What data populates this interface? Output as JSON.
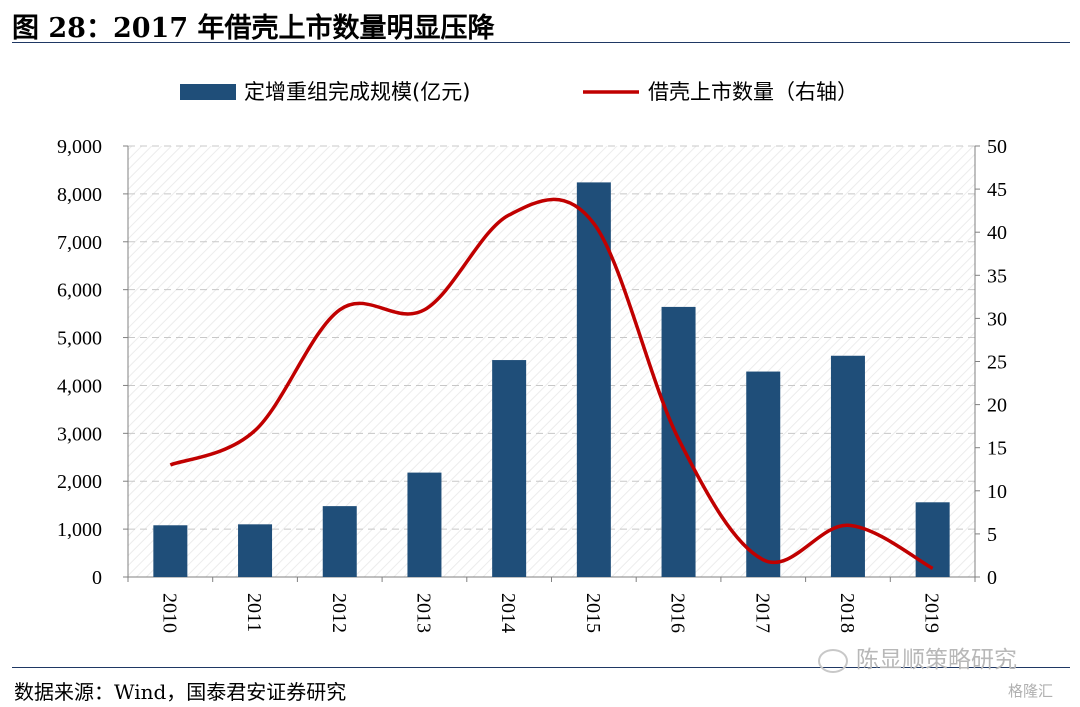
{
  "header": {
    "title": "图 28：2017 年借壳上市数量明显压降"
  },
  "footer": {
    "source": "数据来源：Wind，国泰君安证券研究",
    "watermark": "陈显顺策略研究",
    "watermark2": "格隆汇"
  },
  "colors": {
    "bar": "#1f4e79",
    "line": "#c00000",
    "rule": "#1f3864"
  },
  "chart_data": {
    "type": "bar",
    "categories": [
      "2010",
      "2011",
      "2012",
      "2013",
      "2014",
      "2015",
      "2016",
      "2017",
      "2018",
      "2019"
    ],
    "series": [
      {
        "name": "定增重组完成规模(亿元)",
        "type": "bar",
        "axis": "left",
        "values": [
          1080,
          1100,
          1480,
          2180,
          4530,
          8240,
          5640,
          4290,
          4620,
          1560
        ]
      },
      {
        "name": "借壳上市数量（右轴）",
        "type": "line",
        "axis": "right",
        "values": [
          13,
          17,
          31,
          31,
          42,
          41,
          16,
          2,
          6,
          1
        ]
      }
    ],
    "y_left": {
      "min": 0,
      "max": 9000,
      "ticks": [
        "0",
        "1,000",
        "2,000",
        "3,000",
        "4,000",
        "5,000",
        "6,000",
        "7,000",
        "8,000",
        "9,000"
      ]
    },
    "y_right": {
      "min": 0,
      "max": 50,
      "ticks": [
        "0",
        "5",
        "10",
        "15",
        "20",
        "25",
        "30",
        "35",
        "40",
        "45",
        "50"
      ]
    },
    "legend": "top",
    "grid": true
  }
}
